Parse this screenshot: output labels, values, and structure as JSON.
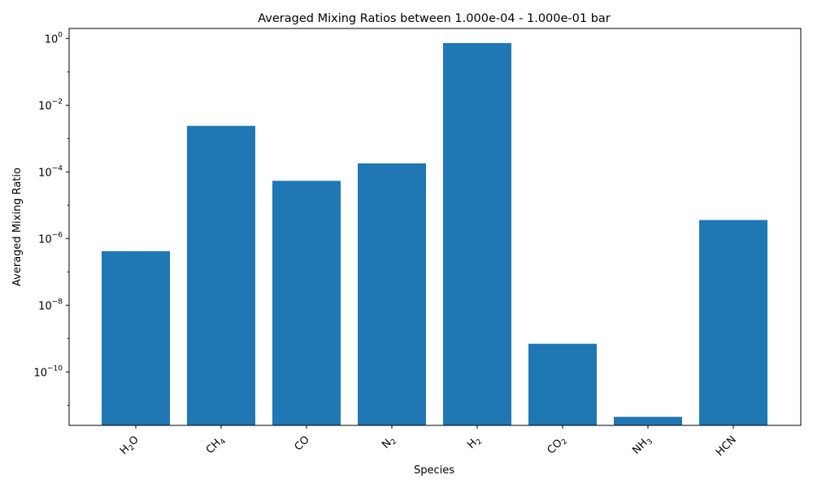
{
  "chart_data": {
    "type": "bar",
    "title": "Averaged Mixing Ratios between 1.000e-04 - 1.000e-01 bar",
    "xlabel": "Species",
    "ylabel": "Averaged Mixing Ratio",
    "yscale": "log",
    "ylim": [
      2.5e-12,
      2.0
    ],
    "grid": false,
    "bar_color": "#1f77b4",
    "categories": [
      {
        "base": "H",
        "sub": "2",
        "rest": "O"
      },
      {
        "base": "CH",
        "sub": "4",
        "rest": ""
      },
      {
        "base": "CO",
        "sub": "",
        "rest": ""
      },
      {
        "base": "N",
        "sub": "2",
        "rest": ""
      },
      {
        "base": "H",
        "sub": "2",
        "rest": ""
      },
      {
        "base": "CO",
        "sub": "2",
        "rest": ""
      },
      {
        "base": "NH",
        "sub": "3",
        "rest": ""
      },
      {
        "base": "HCN",
        "sub": "",
        "rest": ""
      }
    ],
    "values": [
      4.2e-07,
      0.0024,
      5.4e-05,
      0.00018,
      0.73,
      7e-10,
      4.5e-12,
      3.6e-06
    ],
    "yticks": [
      {
        "base": "10",
        "exp": "0",
        "value": 1
      },
      {
        "base": "10",
        "exp": "−2",
        "value": 0.01
      },
      {
        "base": "10",
        "exp": "−4",
        "value": 0.0001
      },
      {
        "base": "10",
        "exp": "−6",
        "value": 1e-06
      },
      {
        "base": "10",
        "exp": "−8",
        "value": 1e-08
      },
      {
        "base": "10",
        "exp": "−10",
        "value": 1e-10
      }
    ]
  }
}
